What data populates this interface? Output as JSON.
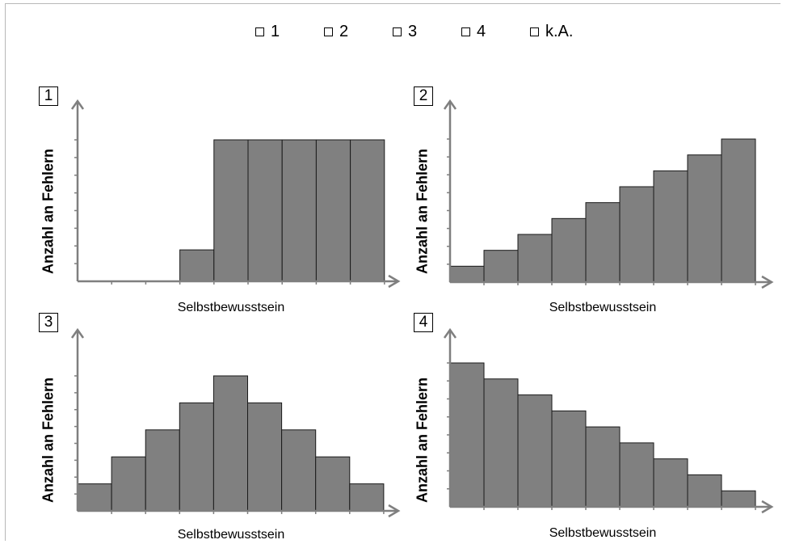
{
  "legend": {
    "items": [
      {
        "label": "1"
      },
      {
        "label": "2"
      },
      {
        "label": "3"
      },
      {
        "label": "4"
      },
      {
        "label": "k.A."
      }
    ]
  },
  "colors": {
    "bar_fill": "#808080",
    "bar_stroke": "#1a1a1a",
    "axis": "#7f7f7f"
  },
  "chart_data": [
    {
      "type": "bar",
      "panel_label": "1",
      "xlabel": "Selbstbewusstsein",
      "ylabel": "Anzahl an Fehlern",
      "categories": [
        "",
        "",
        "",
        "",
        "",
        "",
        "",
        "",
        ""
      ],
      "values": [
        0,
        0,
        0,
        2,
        9,
        9,
        9,
        9,
        9
      ],
      "ylim": [
        0,
        9
      ]
    },
    {
      "type": "bar",
      "panel_label": "2",
      "xlabel": "Selbstbewusstsein",
      "ylabel": "Anzahl an Fehlern",
      "categories": [
        "",
        "",
        "",
        "",
        "",
        "",
        "",
        "",
        ""
      ],
      "values": [
        1,
        2,
        3,
        4,
        5,
        6,
        7,
        8,
        9
      ],
      "ylim": [
        0,
        9
      ]
    },
    {
      "type": "bar",
      "panel_label": "3",
      "xlabel": "Selbstbewusstsein",
      "ylabel": "Anzahl an Fehlern",
      "categories": [
        "",
        "",
        "",
        "",
        "",
        "",
        "",
        "",
        ""
      ],
      "values": [
        1,
        2,
        3,
        4,
        5,
        4,
        3,
        2,
        1
      ],
      "ylim": [
        0,
        5
      ]
    },
    {
      "type": "bar",
      "panel_label": "4",
      "xlabel": "Selbstbewusstsein",
      "ylabel": "Anzahl an Fehlern",
      "categories": [
        "",
        "",
        "",
        "",
        "",
        "",
        "",
        "",
        ""
      ],
      "values": [
        9,
        8,
        7,
        6,
        5,
        4,
        3,
        2,
        1
      ],
      "ylim": [
        0,
        9
      ]
    }
  ]
}
